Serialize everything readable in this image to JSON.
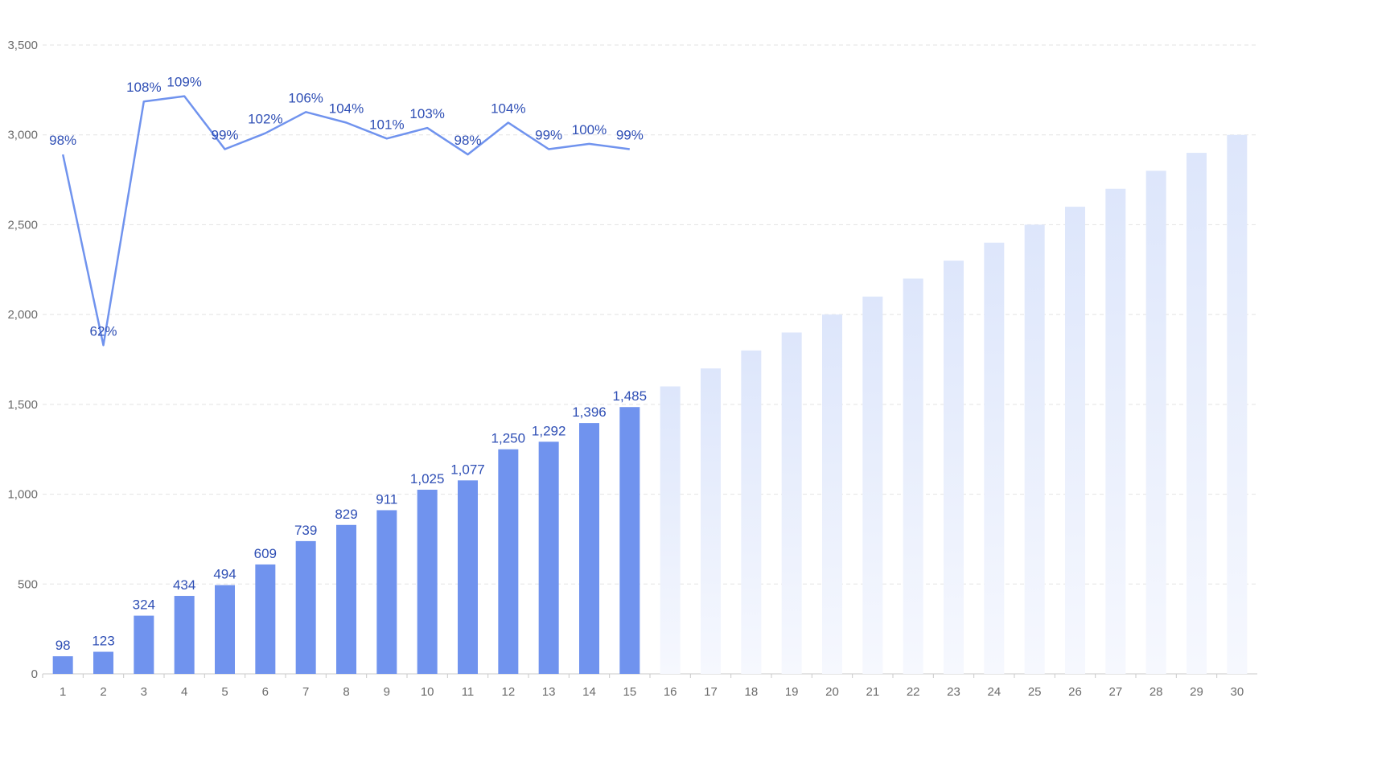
{
  "chart_data": {
    "type": "bar",
    "categories": [
      "1",
      "2",
      "3",
      "4",
      "5",
      "6",
      "7",
      "8",
      "9",
      "10",
      "11",
      "12",
      "13",
      "14",
      "15",
      "16",
      "17",
      "18",
      "19",
      "20",
      "21",
      "22",
      "23",
      "24",
      "25",
      "26",
      "27",
      "28",
      "29",
      "30"
    ],
    "series": [
      {
        "values": [
          98,
          123,
          324,
          434,
          494,
          609,
          739,
          829,
          911,
          1025,
          1077,
          1250,
          1292,
          1396,
          1485,
          null,
          null,
          null,
          null,
          null,
          null,
          null,
          null,
          null,
          null,
          null,
          null,
          null,
          null,
          null
        ],
        "color": "#7093ee",
        "data_labels": [
          "98",
          "123",
          "324",
          "434",
          "494",
          "609",
          "739",
          "829",
          "911",
          "1,025",
          "1,077",
          "1,250",
          "1,292",
          "1,396",
          "1,485"
        ]
      },
      {
        "values": [
          null,
          null,
          null,
          null,
          null,
          null,
          null,
          null,
          null,
          null,
          null,
          null,
          null,
          null,
          null,
          1600,
          1700,
          1800,
          1900,
          2000,
          2100,
          2200,
          2300,
          2400,
          2500,
          2600,
          2700,
          2800,
          2900,
          3000
        ],
        "color": "#dfe7fb"
      },
      {
        "type": "line",
        "percent_values": [
          98,
          62,
          108,
          109,
          99,
          102,
          106,
          104,
          101,
          103,
          98,
          104,
          99,
          100,
          99
        ],
        "percent_labels": [
          "98%",
          "62%",
          "108%",
          "109%",
          "99%",
          "102%",
          "106%",
          "104%",
          "101%",
          "103%",
          "98%",
          "104%",
          "99%",
          "100%",
          "99%"
        ],
        "color": "#7093ee"
      }
    ],
    "y_ticks": [
      "0",
      "500",
      "1,000",
      "1,500",
      "2,000",
      "2,500",
      "3,000",
      "3,500"
    ],
    "ylim": [
      0,
      3500
    ],
    "grid": true,
    "legend": "none"
  }
}
